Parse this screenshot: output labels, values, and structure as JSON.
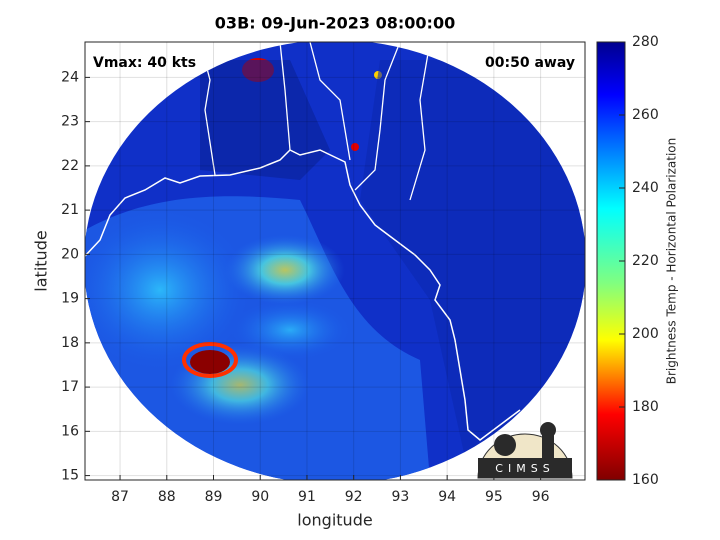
{
  "chart_data": {
    "type": "map",
    "title": "03B: 09-Jun-2023 08:00:00",
    "annotations": [
      "Vmax: 40 kts",
      "00:50 away"
    ],
    "xlabel": "longitude",
    "ylabel": "latitude",
    "xlim": [
      86.25,
      96.95
    ],
    "ylim": [
      14.9,
      24.8
    ],
    "xticks": [
      87,
      88,
      89,
      90,
      91,
      92,
      93,
      94,
      95,
      96
    ],
    "yticks": [
      15,
      16,
      17,
      18,
      19,
      20,
      21,
      22,
      23,
      24
    ],
    "grid": true,
    "colorbar": {
      "label": "Brightness Temp - Horizontal Polarization",
      "lim": [
        160,
        280
      ],
      "ticks": [
        160,
        180,
        200,
        220,
        240,
        260,
        280
      ]
    },
    "logo": "CIMSS"
  }
}
